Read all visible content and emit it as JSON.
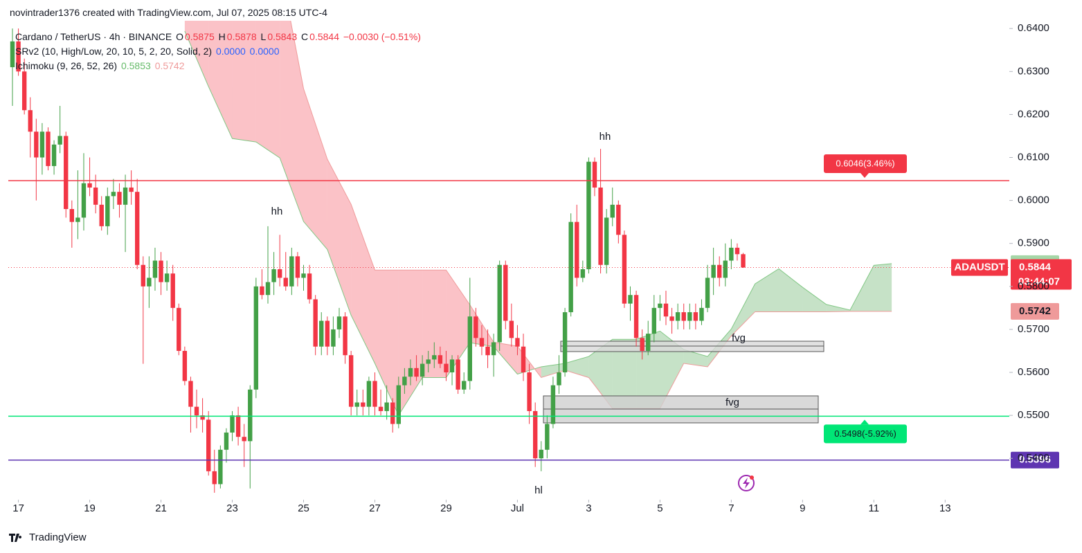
{
  "header": {
    "credit": "novintrader1376 created with TradingView.com, Jul 07, 2025 08:15 UTC-4",
    "brand": "TradingView"
  },
  "chart_data": {
    "type": "candlestick",
    "symbol_line": "Cardano / TetherUS · 4h · BINANCE",
    "ohlc_letters": [
      "O",
      "H",
      "L",
      "C"
    ],
    "change": "−0.0030 (−0.51%)",
    "indicator_1": {
      "label": "SRv2 (10, High/Low, 20, 10, 5, 2, 20, Solid, 2)",
      "values": [
        "0.0000",
        "0.0000"
      ],
      "color": "#2962ff"
    },
    "indicator_2": {
      "label": "Ichimoku (9, 26, 52, 26)",
      "values": [
        0.5853,
        0.5742
      ],
      "colors": [
        "#66bb6a",
        "#ef9a9a"
      ]
    },
    "ticker": "ADAUSDT",
    "countdown": "03:44:07",
    "up_color": "#43a047",
    "down_color": "#f23645",
    "candles": [
      [
        0.631,
        0.64,
        0.622,
        0.637
      ],
      [
        0.637,
        0.64,
        0.629,
        0.63
      ],
      [
        0.63,
        0.633,
        0.62,
        0.621
      ],
      [
        0.621,
        0.624,
        0.61,
        0.616
      ],
      [
        0.616,
        0.619,
        0.6,
        0.61
      ],
      [
        0.61,
        0.618,
        0.606,
        0.616
      ],
      [
        0.616,
        0.617,
        0.607,
        0.608
      ],
      [
        0.608,
        0.614,
        0.606,
        0.613
      ],
      [
        0.613,
        0.622,
        0.611,
        0.615
      ],
      [
        0.615,
        0.616,
        0.596,
        0.598
      ],
      [
        0.598,
        0.6,
        0.589,
        0.595
      ],
      [
        0.595,
        0.607,
        0.591,
        0.596
      ],
      [
        0.596,
        0.611,
        0.593,
        0.604
      ],
      [
        0.604,
        0.61,
        0.601,
        0.603
      ],
      [
        0.603,
        0.606,
        0.597,
        0.599
      ],
      [
        0.599,
        0.601,
        0.593,
        0.594
      ],
      [
        0.594,
        0.603,
        0.592,
        0.601
      ],
      [
        0.601,
        0.605,
        0.598,
        0.602
      ],
      [
        0.602,
        0.604,
        0.596,
        0.599
      ],
      [
        0.599,
        0.606,
        0.588,
        0.603
      ],
      [
        0.603,
        0.607,
        0.599,
        0.602
      ],
      [
        0.602,
        0.605,
        0.584,
        0.585
      ],
      [
        0.585,
        0.587,
        0.562,
        0.58
      ],
      [
        0.58,
        0.587,
        0.575,
        0.582
      ],
      [
        0.582,
        0.589,
        0.579,
        0.586
      ],
      [
        0.586,
        0.588,
        0.578,
        0.581
      ],
      [
        0.581,
        0.586,
        0.579,
        0.583
      ],
      [
        0.583,
        0.585,
        0.572,
        0.575
      ],
      [
        0.575,
        0.576,
        0.564,
        0.565
      ],
      [
        0.565,
        0.566,
        0.557,
        0.558
      ],
      [
        0.558,
        0.559,
        0.546,
        0.552
      ],
      [
        0.552,
        0.556,
        0.547,
        0.55
      ],
      [
        0.55,
        0.554,
        0.546,
        0.549
      ],
      [
        0.549,
        0.551,
        0.536,
        0.537
      ],
      [
        0.537,
        0.542,
        0.532,
        0.534
      ],
      [
        0.534,
        0.543,
        0.533,
        0.542
      ],
      [
        0.542,
        0.547,
        0.539,
        0.546
      ],
      [
        0.546,
        0.551,
        0.544,
        0.55
      ],
      [
        0.55,
        0.552,
        0.543,
        0.545
      ],
      [
        0.545,
        0.548,
        0.538,
        0.544
      ],
      [
        0.544,
        0.557,
        0.533,
        0.556
      ],
      [
        0.556,
        0.582,
        0.554,
        0.58
      ],
      [
        0.58,
        0.584,
        0.577,
        0.578
      ],
      [
        0.578,
        0.594,
        0.576,
        0.581
      ],
      [
        0.581,
        0.588,
        0.578,
        0.584
      ],
      [
        0.584,
        0.592,
        0.58,
        0.582
      ],
      [
        0.582,
        0.588,
        0.579,
        0.58
      ],
      [
        0.58,
        0.589,
        0.578,
        0.587
      ],
      [
        0.587,
        0.588,
        0.58,
        0.582
      ],
      [
        0.582,
        0.585,
        0.579,
        0.583
      ],
      [
        0.583,
        0.585,
        0.576,
        0.577
      ],
      [
        0.577,
        0.578,
        0.564,
        0.566
      ],
      [
        0.566,
        0.574,
        0.564,
        0.572
      ],
      [
        0.572,
        0.573,
        0.564,
        0.566
      ],
      [
        0.566,
        0.573,
        0.564,
        0.57
      ],
      [
        0.57,
        0.575,
        0.568,
        0.573
      ],
      [
        0.573,
        0.574,
        0.562,
        0.564
      ],
      [
        0.564,
        0.565,
        0.55,
        0.552
      ],
      [
        0.552,
        0.556,
        0.55,
        0.553
      ],
      [
        0.553,
        0.556,
        0.55,
        0.552
      ],
      [
        0.552,
        0.559,
        0.55,
        0.558
      ],
      [
        0.558,
        0.56,
        0.55,
        0.552
      ],
      [
        0.552,
        0.556,
        0.55,
        0.551
      ],
      [
        0.551,
        0.557,
        0.549,
        0.553
      ],
      [
        0.553,
        0.554,
        0.546,
        0.548
      ],
      [
        0.548,
        0.559,
        0.547,
        0.557
      ],
      [
        0.557,
        0.561,
        0.555,
        0.559
      ],
      [
        0.559,
        0.563,
        0.557,
        0.561
      ],
      [
        0.561,
        0.564,
        0.558,
        0.559
      ],
      [
        0.559,
        0.564,
        0.557,
        0.562
      ],
      [
        0.562,
        0.565,
        0.56,
        0.563
      ],
      [
        0.563,
        0.567,
        0.561,
        0.564
      ],
      [
        0.564,
        0.566,
        0.561,
        0.562
      ],
      [
        0.562,
        0.565,
        0.558,
        0.56
      ],
      [
        0.56,
        0.564,
        0.557,
        0.563
      ],
      [
        0.563,
        0.564,
        0.555,
        0.556
      ],
      [
        0.556,
        0.56,
        0.555,
        0.558
      ],
      [
        0.558,
        0.582,
        0.556,
        0.573
      ],
      [
        0.573,
        0.575,
        0.566,
        0.568
      ],
      [
        0.568,
        0.571,
        0.564,
        0.566
      ],
      [
        0.566,
        0.57,
        0.561,
        0.564
      ],
      [
        0.564,
        0.569,
        0.559,
        0.567
      ],
      [
        0.567,
        0.586,
        0.565,
        0.585
      ],
      [
        0.585,
        0.586,
        0.57,
        0.572
      ],
      [
        0.572,
        0.576,
        0.566,
        0.568
      ],
      [
        0.568,
        0.571,
        0.564,
        0.566
      ],
      [
        0.566,
        0.569,
        0.558,
        0.56
      ],
      [
        0.56,
        0.562,
        0.548,
        0.551
      ],
      [
        0.551,
        0.553,
        0.538,
        0.54
      ],
      [
        0.54,
        0.544,
        0.537,
        0.542
      ],
      [
        0.542,
        0.55,
        0.54,
        0.548
      ],
      [
        0.548,
        0.559,
        0.547,
        0.557
      ],
      [
        0.557,
        0.564,
        0.555,
        0.56
      ],
      [
        0.56,
        0.575,
        0.559,
        0.574
      ],
      [
        0.574,
        0.597,
        0.573,
        0.595
      ],
      [
        0.595,
        0.599,
        0.58,
        0.582
      ],
      [
        0.582,
        0.586,
        0.581,
        0.584
      ],
      [
        0.584,
        0.61,
        0.583,
        0.609
      ],
      [
        0.609,
        0.61,
        0.601,
        0.603
      ],
      [
        0.603,
        0.612,
        0.583,
        0.585
      ],
      [
        0.585,
        0.598,
        0.583,
        0.596
      ],
      [
        0.596,
        0.603,
        0.594,
        0.599
      ],
      [
        0.599,
        0.6,
        0.59,
        0.592
      ],
      [
        0.592,
        0.593,
        0.575,
        0.576
      ],
      [
        0.576,
        0.58,
        0.572,
        0.578
      ],
      [
        0.578,
        0.579,
        0.566,
        0.568
      ],
      [
        0.568,
        0.57,
        0.563,
        0.565
      ],
      [
        0.565,
        0.572,
        0.564,
        0.569
      ],
      [
        0.569,
        0.578,
        0.567,
        0.575
      ],
      [
        0.575,
        0.578,
        0.572,
        0.576
      ],
      [
        0.576,
        0.579,
        0.571,
        0.573
      ],
      [
        0.573,
        0.575,
        0.569,
        0.572
      ],
      [
        0.572,
        0.576,
        0.57,
        0.574
      ],
      [
        0.574,
        0.576,
        0.57,
        0.572
      ],
      [
        0.572,
        0.576,
        0.57,
        0.574
      ],
      [
        0.574,
        0.576,
        0.57,
        0.572
      ],
      [
        0.572,
        0.577,
        0.571,
        0.575
      ],
      [
        0.575,
        0.585,
        0.574,
        0.582
      ],
      [
        0.582,
        0.589,
        0.578,
        0.585
      ],
      [
        0.585,
        0.587,
        0.58,
        0.582
      ],
      [
        0.582,
        0.59,
        0.58,
        0.586
      ],
      [
        0.586,
        0.591,
        0.584,
        0.589
      ],
      [
        0.589,
        0.59,
        0.586,
        0.5875
      ],
      [
        0.5875,
        0.5878,
        0.5843,
        0.5844
      ]
    ],
    "cloud": {
      "x": [
        29,
        33,
        37,
        41,
        45,
        49,
        53,
        57,
        61,
        65,
        69,
        73,
        77,
        81,
        85,
        89,
        93,
        97,
        101,
        105,
        109,
        113,
        117,
        121,
        125,
        129,
        133,
        137,
        141,
        145,
        148
      ],
      "span_a": [
        0.6394,
        0.6265,
        0.6144,
        0.6136,
        0.6099,
        0.5951,
        0.5886,
        0.5733,
        0.5621,
        0.55,
        0.5588,
        0.5588,
        0.5669,
        0.566,
        0.5596,
        0.5613,
        0.5621,
        0.5637,
        0.5677,
        0.5677,
        0.5696,
        0.5653,
        0.5637,
        0.5701,
        0.5806,
        0.5841,
        0.5798,
        0.5758,
        0.5745,
        0.5849,
        0.5853
      ],
      "span_b": [
        0.66,
        0.66,
        0.66,
        0.66,
        0.655,
        0.626,
        0.6096,
        0.5991,
        0.5838,
        0.5838,
        0.5838,
        0.5838,
        0.5757,
        0.567,
        0.5661,
        0.5588,
        0.5605,
        0.5588,
        0.5516,
        0.5516,
        0.5516,
        0.5621,
        0.5613,
        0.5685,
        0.5741,
        0.5741,
        0.5741,
        0.5741,
        0.5742,
        0.5742,
        0.5742
      ]
    },
    "levels": [
      {
        "value": 0.6046,
        "label": "0.6046(3.46%)",
        "color": "#f23645"
      },
      {
        "value": 0.5498,
        "label": "0.5498(-5.92%)",
        "color": "#00e676"
      },
      {
        "value": 0.5396,
        "color": "#5e35b1"
      }
    ],
    "annotations": [
      "hh",
      "hh",
      "hl",
      "fvg",
      "fvg"
    ],
    "xlim": [
      -1,
      167.8
    ],
    "xticks": [
      {
        "value": 1,
        "label": "17"
      },
      {
        "value": 13,
        "label": "19"
      },
      {
        "value": 25,
        "label": "21"
      },
      {
        "value": 37,
        "label": "23"
      },
      {
        "value": 49,
        "label": "25"
      },
      {
        "value": 61,
        "label": "27"
      },
      {
        "value": 73,
        "label": "29"
      },
      {
        "value": 85,
        "label": "Jul"
      },
      {
        "value": 97,
        "label": "3"
      },
      {
        "value": 109,
        "label": "5"
      },
      {
        "value": 121,
        "label": "7"
      },
      {
        "value": 133,
        "label": "9"
      },
      {
        "value": 145,
        "label": "11"
      },
      {
        "value": 157,
        "label": "13"
      }
    ],
    "ylim": [
      0.5307,
      0.6418
    ],
    "yticks": [
      {
        "value": 0.54,
        "label": "0.5400"
      },
      {
        "value": 0.55,
        "label": "0.5500"
      },
      {
        "value": 0.56,
        "label": "0.5600"
      },
      {
        "value": 0.57,
        "label": "0.5700"
      },
      {
        "value": 0.58,
        "label": "0.5800"
      },
      {
        "value": 0.59,
        "label": "0.5900"
      },
      {
        "value": 0.6,
        "label": "0.6000"
      },
      {
        "value": 0.61,
        "label": "0.6100"
      },
      {
        "value": 0.62,
        "label": "0.6200"
      },
      {
        "value": 0.63,
        "label": "0.6300"
      },
      {
        "value": 0.64,
        "label": "0.6400"
      }
    ]
  }
}
